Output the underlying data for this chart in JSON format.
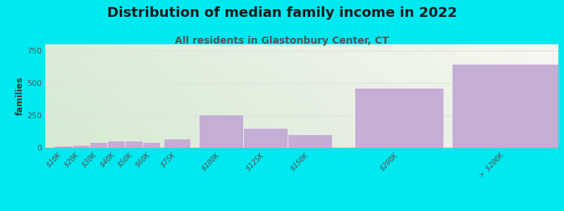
{
  "title": "Distribution of median family income in 2022",
  "subtitle": "All residents in Glastonbury Center, CT",
  "ylabel": "families",
  "categories": [
    "$10K",
    "$20K",
    "$30K",
    "$40K",
    "$50K",
    "$60K",
    "$75K",
    "$100K",
    "$125K",
    "$150K",
    "$200K",
    "> $200K"
  ],
  "values": [
    15,
    20,
    45,
    55,
    55,
    45,
    70,
    255,
    155,
    105,
    465,
    645
  ],
  "bar_color": "#c4aed4",
  "background_outer": "#00e8f0",
  "background_plot_topleft": "#daecd8",
  "background_plot_topright": "#f0f0ea",
  "background_plot_bottomleft": "#d5ebd2",
  "background_plot_bottomright": "#f8f8f2",
  "title_color": "#1a1a1a",
  "subtitle_color": "#555555",
  "ylabel_color": "#333333",
  "tick_color": "#555555",
  "grid_color": "#e0e0e0",
  "ylim": [
    0,
    800
  ],
  "yticks": [
    0,
    250,
    500,
    750
  ],
  "title_fontsize": 14,
  "subtitle_fontsize": 10,
  "ylabel_fontsize": 9,
  "tick_positions": [
    10,
    20,
    30,
    40,
    50,
    60,
    75,
    100,
    125,
    150,
    200,
    260
  ],
  "bar_widths": [
    10,
    10,
    10,
    10,
    10,
    10,
    15,
    25,
    25,
    25,
    50,
    60
  ],
  "bar_lefts": [
    5,
    15,
    25,
    35,
    45,
    55,
    67,
    87,
    112,
    137,
    175,
    230
  ]
}
